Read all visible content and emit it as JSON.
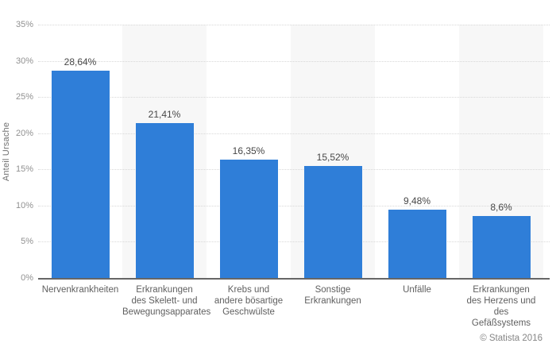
{
  "chart_data": {
    "type": "bar",
    "title": "",
    "xlabel": "",
    "ylabel": "Anteil Ursache",
    "ylim": [
      0,
      35
    ],
    "yticks": [
      0,
      5,
      10,
      15,
      20,
      25,
      30,
      35
    ],
    "ytick_suffix": "%",
    "grid": "horizontal-dotted",
    "legend": "none",
    "alternating_bands": true,
    "categories": [
      "Nervenkrankheiten",
      "Erkrankungen des Skelett- und Bewegungsapparates",
      "Krebs und andere bösartige Geschwülste",
      "Sonstige Erkrankungen",
      "Unfälle",
      "Erkrankungen des Herzens und des Gefäßsystems"
    ],
    "category_label_lines": [
      [
        "Nervenkrankheiten"
      ],
      [
        "Erkrankungen",
        "des Skelett- und",
        "Bewegungsapparates"
      ],
      [
        "Krebs und",
        "andere bösartige",
        "Geschwülste"
      ],
      [
        "Sonstige",
        "Erkrankungen"
      ],
      [
        "Unfälle"
      ],
      [
        "Erkrankungen",
        "des Herzens und",
        "des",
        "Gefäßsystems"
      ]
    ],
    "values": [
      28.64,
      21.41,
      16.35,
      15.52,
      9.48,
      8.6
    ],
    "value_labels": [
      "28,64%",
      "21,41%",
      "16,35%",
      "15,52%",
      "9,48%",
      "8,6%"
    ],
    "bar_color": "#2f7ed8",
    "band_color": "#f7f7f7"
  },
  "footer": {
    "copyright": "© Statista 2016"
  }
}
